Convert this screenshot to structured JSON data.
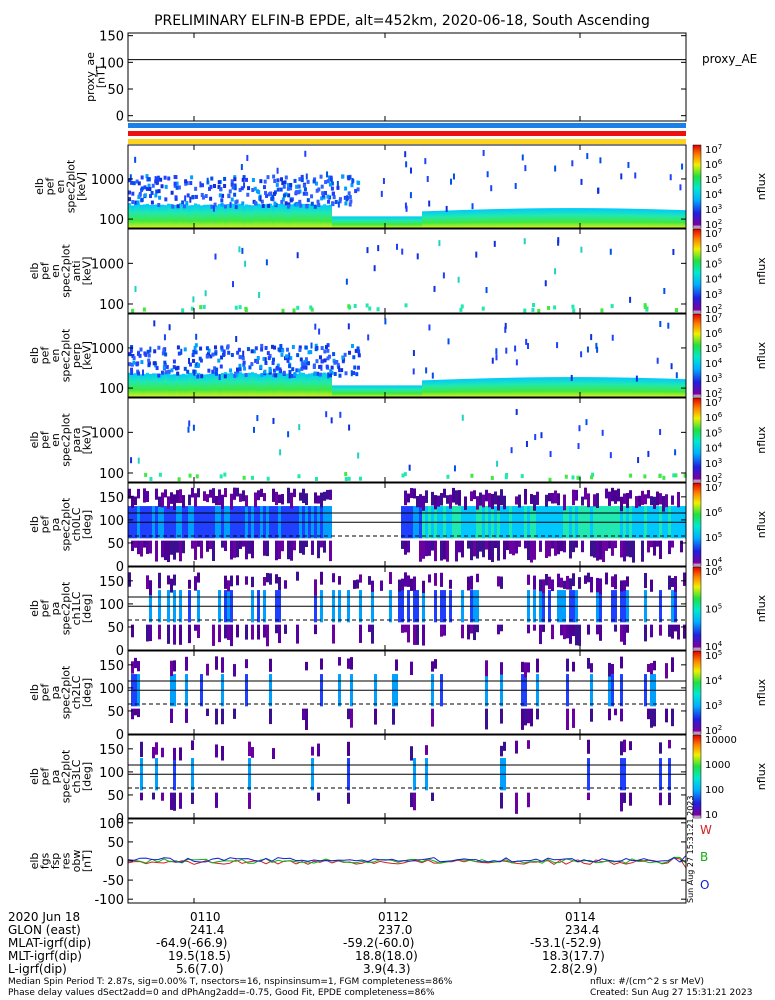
{
  "title": "PRELIMINARY ELFIN-B EPDE, alt=452km, 2020-06-18, South Ascending",
  "bar_colors": [
    "#1a7fe6",
    "#ee1010",
    "#ffd21e"
  ],
  "chart_data": [
    {
      "type": "line",
      "name": "proxy_ae",
      "ylabel": [
        "proxy_ae",
        "[nT]"
      ],
      "ylim": [
        -10,
        155
      ],
      "yticks": [
        0,
        50,
        100,
        150
      ],
      "hline": 105,
      "legend": "proxy_AE"
    },
    {
      "type": "heatmap",
      "ylabel": [
        "elb",
        "pef",
        "en",
        "spec2plot",
        "[keV]"
      ],
      "ylog": true,
      "yticks": [
        100,
        1000
      ],
      "cbar_label": "nflux",
      "cbar_exps": [
        2,
        3,
        4,
        5,
        6,
        7
      ]
    },
    {
      "type": "heatmap",
      "ylabel": [
        "elb",
        "pef",
        "en",
        "spec2plot",
        "anti",
        "[keV]"
      ],
      "ylog": true,
      "yticks": [
        100,
        1000
      ],
      "cbar_label": "nflux",
      "cbar_exps": [
        2,
        3,
        4,
        5,
        6,
        7
      ]
    },
    {
      "type": "heatmap",
      "ylabel": [
        "elb",
        "pef",
        "en",
        "spec2plot",
        "perp",
        "[keV]"
      ],
      "ylog": true,
      "yticks": [
        100,
        1000
      ],
      "cbar_label": "nflux",
      "cbar_exps": [
        2,
        3,
        4,
        5,
        6,
        7
      ]
    },
    {
      "type": "heatmap",
      "ylabel": [
        "elb",
        "pef",
        "en",
        "spec2plot",
        "para",
        "[keV]"
      ],
      "ylog": true,
      "yticks": [
        100,
        1000
      ],
      "cbar_label": "nflux",
      "cbar_exps": [
        2,
        3,
        4,
        5,
        6,
        7
      ]
    },
    {
      "type": "heatmap",
      "ylabel": [
        "elb",
        "pef",
        "pa",
        "spec2plot",
        "ch0LC",
        "[deg]"
      ],
      "ylim": [
        0,
        180
      ],
      "yticks": [
        0,
        50,
        100,
        150
      ],
      "cbar_label": "nflux",
      "cbar_exps": [
        4,
        5,
        6,
        7
      ]
    },
    {
      "type": "heatmap",
      "ylabel": [
        "elb",
        "pef",
        "pa",
        "spec2plot",
        "ch1LC",
        "[deg]"
      ],
      "ylim": [
        0,
        180
      ],
      "yticks": [
        0,
        50,
        100,
        150
      ],
      "cbar_label": "nflux",
      "cbar_exps": [
        4,
        5,
        6
      ]
    },
    {
      "type": "heatmap",
      "ylabel": [
        "elb",
        "pef",
        "pa",
        "spec2plot",
        "ch2LC",
        "[deg]"
      ],
      "ylim": [
        0,
        180
      ],
      "yticks": [
        0,
        50,
        100,
        150
      ],
      "cbar_label": "nflux",
      "cbar_exps": [
        2,
        3,
        4,
        5
      ]
    },
    {
      "type": "heatmap",
      "ylabel": [
        "elb",
        "pef",
        "pa",
        "spec2plot",
        "ch3LC",
        "[deg]"
      ],
      "ylim": [
        0,
        180
      ],
      "yticks": [
        0,
        50,
        100,
        150
      ],
      "cbar_label": "nflux",
      "cbar_labels": [
        "10",
        "100",
        "1000",
        "10000"
      ]
    },
    {
      "type": "line",
      "ylabel": [
        "elb",
        "fgs",
        "fsp",
        "res",
        "obw",
        "[nT]"
      ],
      "ylim": [
        -110,
        110
      ],
      "yticks": [
        -100,
        -50,
        0,
        50,
        100
      ],
      "series": [
        {
          "name": "W",
          "color": "#d42020"
        },
        {
          "name": "B",
          "color": "#10b010"
        },
        {
          "name": "O",
          "color": "#1020d0"
        }
      ]
    }
  ],
  "xaxis": {
    "ticks": [
      "0110",
      "0112",
      "0114"
    ]
  },
  "rotated_label": "Sun Aug 27 15:31:21 2023",
  "info_rows": [
    {
      "label": "2020 Jun 18",
      "values": [
        "0110",
        "0112",
        "0114"
      ]
    },
    {
      "label": "GLON (east)",
      "values": [
        "241.4",
        "237.0",
        "234.4"
      ]
    },
    {
      "label": "MLAT-igrf(dip)",
      "values": [
        "-64.9(-66.9)",
        "-59.2(-60.0)",
        "-53.1(-52.9)"
      ]
    },
    {
      "label": "MLT-igrf(dip)",
      "values": [
        "19.5(18.5)",
        "18.8(18.0)",
        "18.3(17.7)"
      ]
    },
    {
      "label": "L-igrf(dip)",
      "values": [
        "5.6(7.0)",
        "3.9(4.3)",
        "2.8(2.9)"
      ]
    }
  ],
  "footer": {
    "left": [
      "Median Spin Period T: 2.87s, sig=0.00% T, nsectors=16, nspinsinsum=1, FGM completeness=86%",
      "Phase delay values dSect2add=0 and dPhAng2add=-0.75, Good Fit, EPDE completeness=86%"
    ],
    "right": [
      "nflux: #/(cm^2 s sr MeV)",
      "Created: Sun Aug 27 15:31:21 2023"
    ]
  }
}
